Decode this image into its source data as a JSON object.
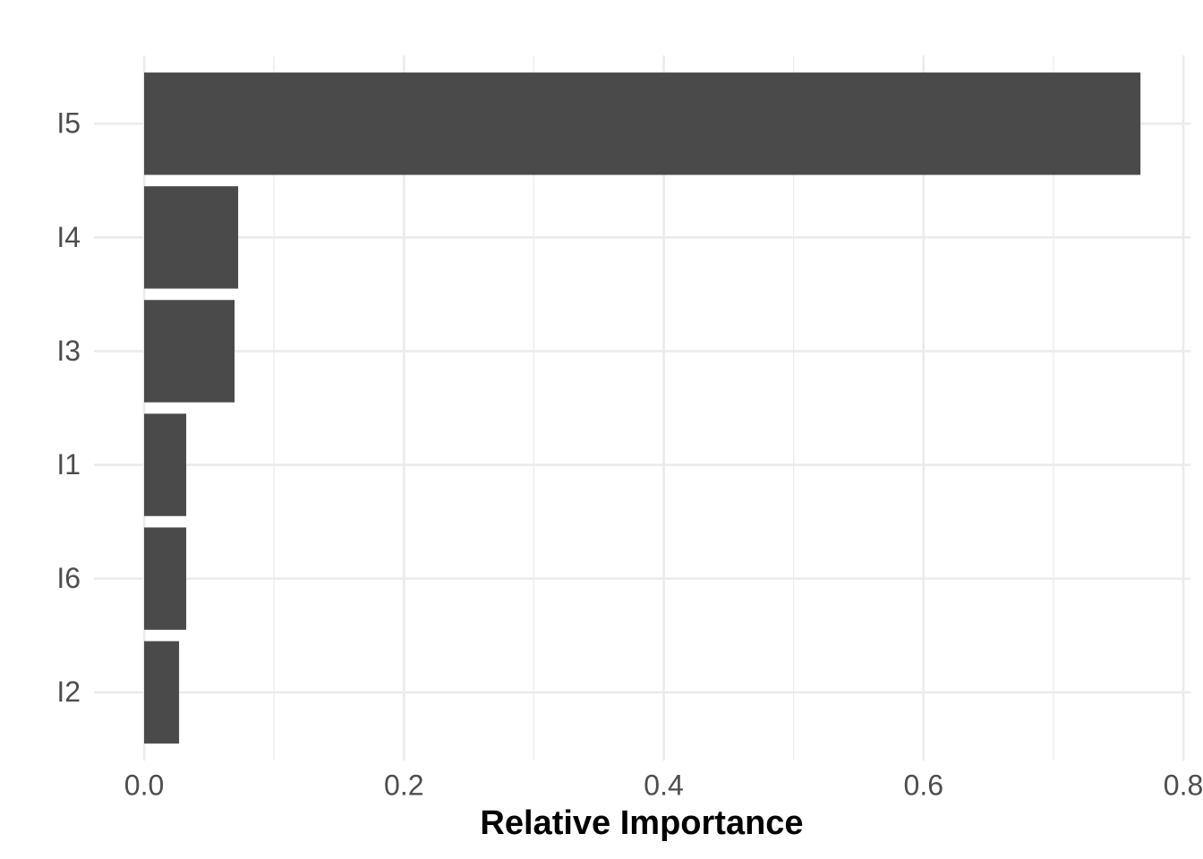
{
  "chart_data": {
    "type": "bar",
    "orientation": "horizontal",
    "x_label": "Relative Importance",
    "categories": [
      "I5",
      "I4",
      "I3",
      "I1",
      "I6",
      "I2"
    ],
    "values": [
      0.767,
      0.0724,
      0.0696,
      0.0324,
      0.0324,
      0.0269
    ],
    "color": "#4a4a4a",
    "xlim": [
      -0.0386,
      0.8055
    ],
    "xticks": [
      {
        "value": 0,
        "label": "0.0"
      },
      0.2,
      0.4,
      0.6,
      0.8
    ],
    "xminor_ticks": [
      0.1,
      0.3,
      0.5,
      0.7
    ],
    "grid": true
  }
}
